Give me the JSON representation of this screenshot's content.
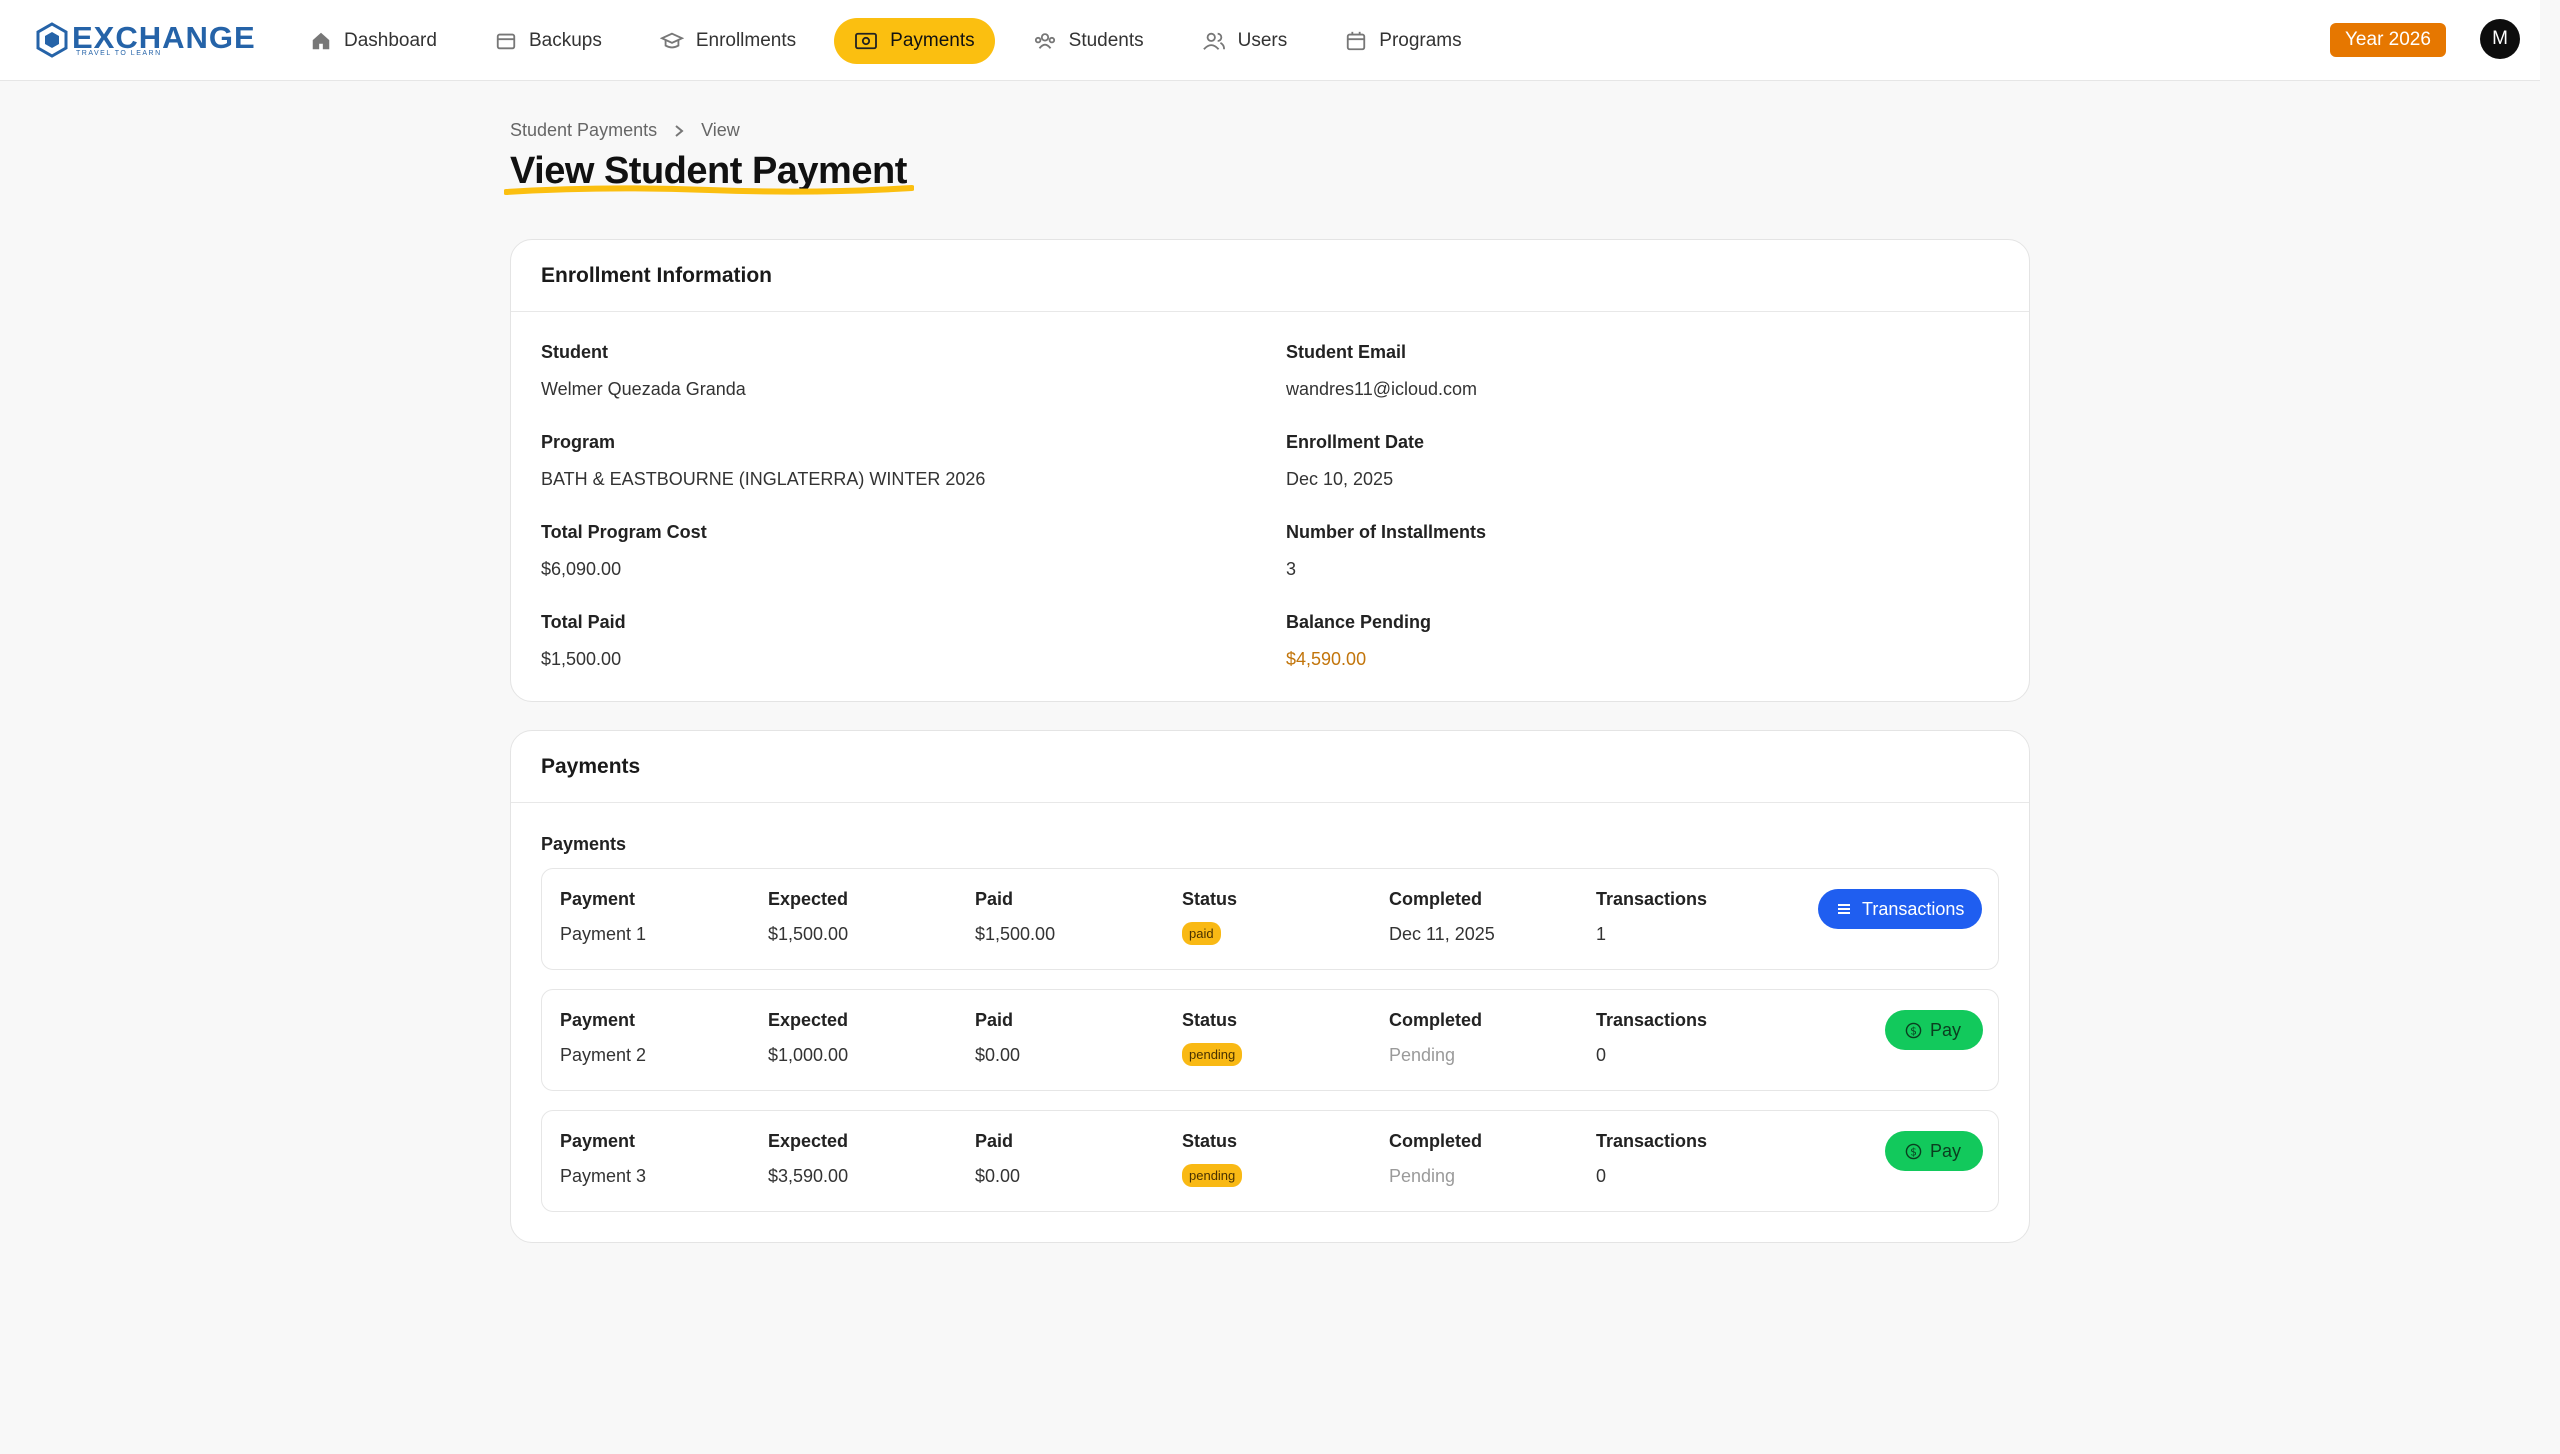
{
  "brand": {
    "name": "EXCHANGE",
    "tagline": "TRAVEL TO LEARN"
  },
  "nav": {
    "items": [
      {
        "label": "Dashboard",
        "icon": "home-icon",
        "active": false
      },
      {
        "label": "Backups",
        "icon": "archive-icon",
        "active": false
      },
      {
        "label": "Enrollments",
        "icon": "graduation-cap-icon",
        "active": false
      },
      {
        "label": "Payments",
        "icon": "banknote-icon",
        "active": true
      },
      {
        "label": "Students",
        "icon": "students-group-icon",
        "active": false
      },
      {
        "label": "Users",
        "icon": "users-icon",
        "active": false
      },
      {
        "label": "Programs",
        "icon": "calendar-icon",
        "active": false
      }
    ],
    "year_badge": "Year 2026",
    "avatar_initial": "M"
  },
  "breadcrumb": {
    "parent": "Student Payments",
    "current": "View"
  },
  "page_title": "View Student Payment",
  "enrollment": {
    "title": "Enrollment Information",
    "student_label": "Student",
    "student": "Welmer Quezada Granda",
    "email_label": "Student Email",
    "email": "wandres11@icloud.com",
    "program_label": "Program",
    "program": "BATH & EASTBOURNE (INGLATERRA) WINTER 2026",
    "enroll_date_label": "Enrollment Date",
    "enroll_date": "Dec 10, 2025",
    "total_cost_label": "Total Program Cost",
    "total_cost": "$6,090.00",
    "installments_label": "Number of Installments",
    "installments": "3",
    "total_paid_label": "Total Paid",
    "total_paid": "$1,500.00",
    "balance_label": "Balance Pending",
    "balance": "$4,590.00"
  },
  "payments": {
    "title": "Payments",
    "section_label": "Payments",
    "headers": {
      "payment": "Payment",
      "expected": "Expected",
      "paid": "Paid",
      "status": "Status",
      "completed": "Completed",
      "transactions": "Transactions"
    },
    "rows": [
      {
        "payment": "Payment 1",
        "expected": "$1,500.00",
        "paid": "$1,500.00",
        "status": "paid",
        "completed": "Dec 11, 2025",
        "transactions": "1",
        "action": "Transactions"
      },
      {
        "payment": "Payment 2",
        "expected": "$1,000.00",
        "paid": "$0.00",
        "status": "pending",
        "completed": "Pending",
        "transactions": "0",
        "action": "Pay"
      },
      {
        "payment": "Payment 3",
        "expected": "$3,590.00",
        "paid": "$0.00",
        "status": "pending",
        "completed": "Pending",
        "transactions": "0",
        "action": "Pay"
      }
    ]
  },
  "colors": {
    "accent": "#fbbf10",
    "year_badge": "#e67700",
    "primary_button": "#1f5ef0",
    "pay_button": "#12c95c",
    "balance_text": "#c2750b",
    "brand": "#2563a8"
  }
}
